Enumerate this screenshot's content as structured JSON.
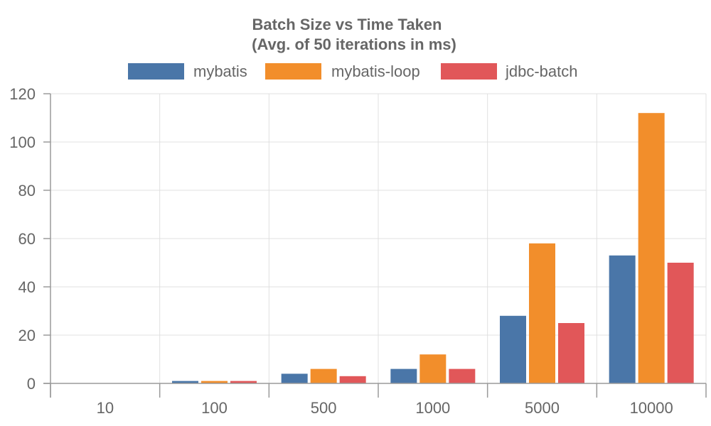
{
  "chart_data": {
    "type": "bar",
    "title": [
      "Batch Size vs Time Taken",
      "(Avg. of 50 iterations in ms)"
    ],
    "xlabel": "",
    "ylabel": "",
    "categories": [
      "10",
      "100",
      "500",
      "1000",
      "5000",
      "10000"
    ],
    "series": [
      {
        "name": "mybatis",
        "color": "#4a76a8",
        "values": [
          0,
          1,
          4,
          6,
          28,
          53
        ]
      },
      {
        "name": "mybatis-loop",
        "color": "#f28e2b",
        "values": [
          0,
          1,
          6,
          12,
          58,
          112
        ]
      },
      {
        "name": "jdbc-batch",
        "color": "#e15759",
        "values": [
          0,
          1,
          3,
          6,
          25,
          50
        ]
      }
    ],
    "ylim": [
      0,
      120
    ],
    "yticks": [
      0,
      20,
      40,
      60,
      80,
      100,
      120
    ],
    "grid": true,
    "legend_position": "top"
  }
}
